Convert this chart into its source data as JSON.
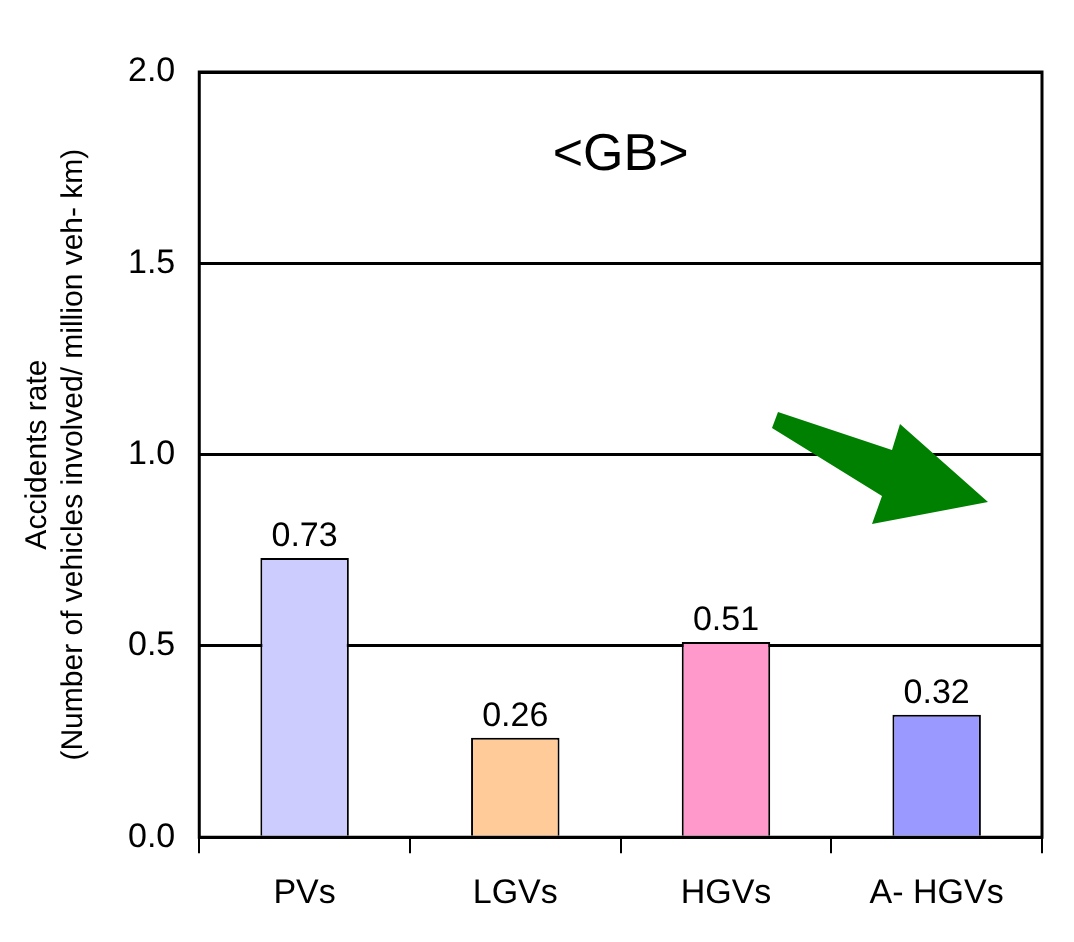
{
  "chart_data": {
    "type": "bar",
    "ylabel": "Accidents rate\n(Number of vehicles involved/ million veh- km)",
    "categories": [
      "PVs",
      "LGVs",
      "HGVs",
      "A- HGVs"
    ],
    "values": [
      0.73,
      0.26,
      0.51,
      0.32
    ],
    "colors": [
      "#ccccff",
      "#ffcc99",
      "#ff99cc",
      "#9999ff"
    ],
    "ylim": [
      0,
      2
    ],
    "yticks": [
      {
        "value": 0,
        "label": "0.0"
      },
      0.5,
      {
        "value": 1,
        "label": "1.0"
      },
      1.5,
      {
        "value": 2,
        "label": "2.0"
      }
    ],
    "grid": "y",
    "data_labels": true,
    "legend": false,
    "annotations": [
      "<GB>"
    ]
  }
}
